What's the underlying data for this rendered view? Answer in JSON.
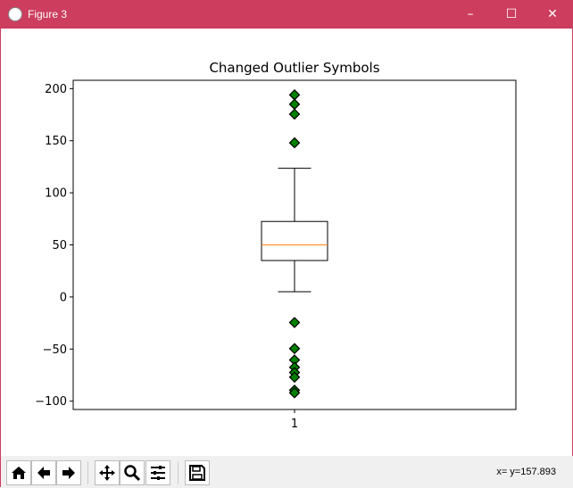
{
  "window": {
    "title": "Figure 3",
    "controls": [
      "minimize",
      "maximize",
      "close"
    ]
  },
  "toolbar": {
    "buttons": [
      {
        "name": "home",
        "icon": "home-icon",
        "glyph": "⌂"
      },
      {
        "name": "back",
        "icon": "arrow-left-icon",
        "glyph": "🡐"
      },
      {
        "name": "forward",
        "icon": "arrow-right-icon",
        "glyph": "🡒"
      },
      {
        "name": "pan",
        "icon": "move-icon",
        "glyph": "✥"
      },
      {
        "name": "zoom",
        "icon": "magnifier-icon",
        "glyph": "🔍"
      },
      {
        "name": "configure",
        "icon": "sliders-icon",
        "glyph": "☰"
      },
      {
        "name": "save",
        "icon": "floppy-disk-icon",
        "glyph": "💾"
      }
    ],
    "coords": "x= y=157.893"
  },
  "chart_data": {
    "type": "box",
    "title": "Changed Outlier Symbols",
    "categories": [
      "1"
    ],
    "ylim": [
      -108,
      208
    ],
    "yticks": [
      -100,
      -50,
      0,
      50,
      100,
      150,
      200
    ],
    "box": {
      "whisker_low": 5,
      "q1": 35,
      "median": 50,
      "q3": 72.5,
      "whisker_high": 123.5
    },
    "outliers": [
      194,
      185,
      175.5,
      148,
      -24.5,
      -49.5,
      -60.5,
      -67.5,
      -72.5,
      -77,
      -89.5,
      -92
    ],
    "colors": {
      "median": "#ff7f0e",
      "outlier_fill": "#008000",
      "outlier_edge": "#000000",
      "box": "#000000"
    },
    "outlier_marker": "diamond"
  }
}
